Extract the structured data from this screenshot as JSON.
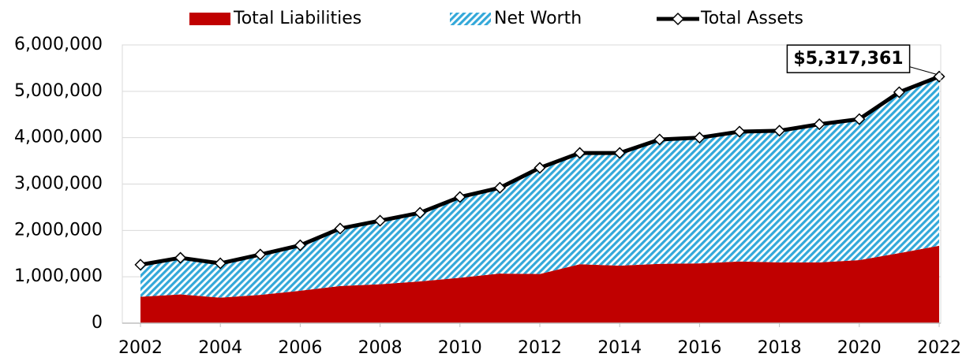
{
  "chart_data": {
    "type": "stacked-area-line",
    "x": [
      2002,
      2003,
      2004,
      2005,
      2006,
      2007,
      2008,
      2009,
      2010,
      2011,
      2012,
      2013,
      2014,
      2015,
      2016,
      2017,
      2018,
      2019,
      2020,
      2021,
      2022
    ],
    "series": [
      {
        "name": "Total Liabilities",
        "color": "#c00000",
        "kind": "area",
        "values": [
          570000,
          620000,
          550000,
          610000,
          700000,
          800000,
          840000,
          900000,
          980000,
          1070000,
          1060000,
          1270000,
          1240000,
          1280000,
          1290000,
          1330000,
          1310000,
          1310000,
          1360000,
          1510000,
          1670000
        ]
      },
      {
        "name": "Net Worth",
        "color": "#33a8d9",
        "kind": "area",
        "values": [
          690000,
          790000,
          740000,
          870000,
          980000,
          1240000,
          1370000,
          1480000,
          1740000,
          1850000,
          2290000,
          2400000,
          2430000,
          2680000,
          2710000,
          2800000,
          2840000,
          2980000,
          3040000,
          3470000,
          3647361
        ]
      },
      {
        "name": "Total Assets",
        "color": "#000000",
        "kind": "line",
        "values": [
          1260000,
          1410000,
          1290000,
          1480000,
          1680000,
          2040000,
          2210000,
          2380000,
          2720000,
          2920000,
          3350000,
          3670000,
          3670000,
          3960000,
          4000000,
          4130000,
          4150000,
          4290000,
          4400000,
          4980000,
          5317361
        ],
        "value_labels": [
          null,
          null,
          null,
          null,
          null,
          null,
          null,
          null,
          null,
          null,
          null,
          null,
          null,
          null,
          null,
          null,
          null,
          null,
          null,
          null,
          "$5,317,361"
        ]
      }
    ],
    "xlim": [
      2002,
      2022
    ],
    "xticks": [
      2002,
      2004,
      2006,
      2008,
      2010,
      2012,
      2014,
      2016,
      2018,
      2020,
      2022
    ],
    "ylim": [
      0,
      6000000
    ],
    "yticks": [
      0,
      {
        "value": 1000000,
        "label": "1,000,000"
      },
      {
        "value": 2000000,
        "label": "2,000,000"
      },
      {
        "value": 3000000,
        "label": "3,000,000"
      },
      {
        "value": 4000000,
        "label": "4,000,000"
      },
      {
        "value": 5000000,
        "label": "5,000,000"
      },
      {
        "value": 6000000,
        "label": "6,000,000"
      }
    ],
    "grid": true,
    "legend": "top"
  }
}
